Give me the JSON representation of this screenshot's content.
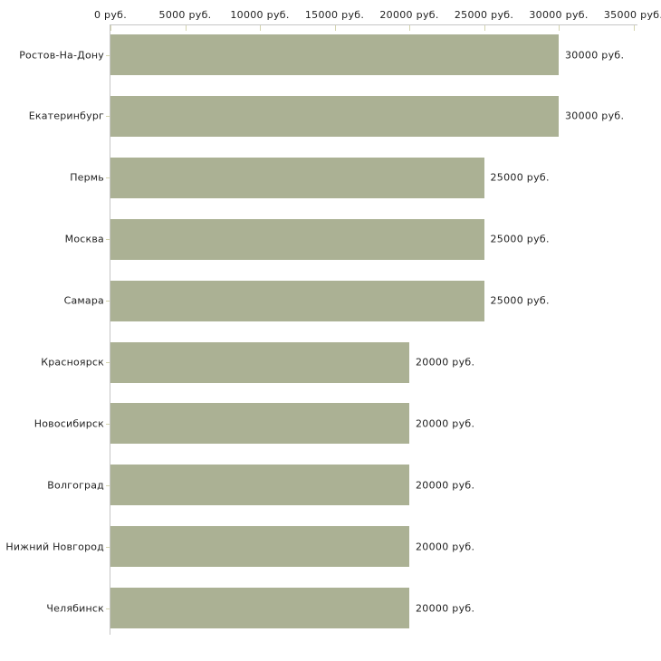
{
  "chart_data": {
    "type": "bar",
    "orientation": "horizontal",
    "title": "",
    "xlabel": "",
    "ylabel": "",
    "unit": "руб.",
    "grid": false,
    "legend": null,
    "xlim": [
      0,
      35000
    ],
    "categories": [
      "Ростов-На-Дону",
      "Екатеринбург",
      "Пермь",
      "Москва",
      "Самара",
      "Красноярск",
      "Новосибирск",
      "Волгоград",
      "Нижний Новгород",
      "Челябинск"
    ],
    "values": [
      30000,
      30000,
      25000,
      25000,
      25000,
      20000,
      20000,
      20000,
      20000,
      20000
    ],
    "value_labels": [
      "30000 руб.",
      "30000 руб.",
      "25000 руб.",
      "25000 руб.",
      "25000 руб.",
      "20000 руб.",
      "20000 руб.",
      "20000 руб.",
      "20000 руб.",
      "20000 руб."
    ],
    "x_ticks": [
      {
        "value": 0,
        "label": "0 руб."
      },
      {
        "value": 5000,
        "label": "5000 руб."
      },
      {
        "value": 10000,
        "label": "10000 руб."
      },
      {
        "value": 15000,
        "label": "15000 руб."
      },
      {
        "value": 20000,
        "label": "20000 руб."
      },
      {
        "value": 25000,
        "label": "25000 руб."
      },
      {
        "value": 30000,
        "label": "30000 руб."
      },
      {
        "value": 35000,
        "label": "35000 руб."
      }
    ],
    "colors": {
      "bar": "#abb194",
      "axis_line": "#c6c6c6",
      "tick_mark": "#d4d4ae",
      "text": "#1f1f1f",
      "background": "#ffffff"
    }
  }
}
